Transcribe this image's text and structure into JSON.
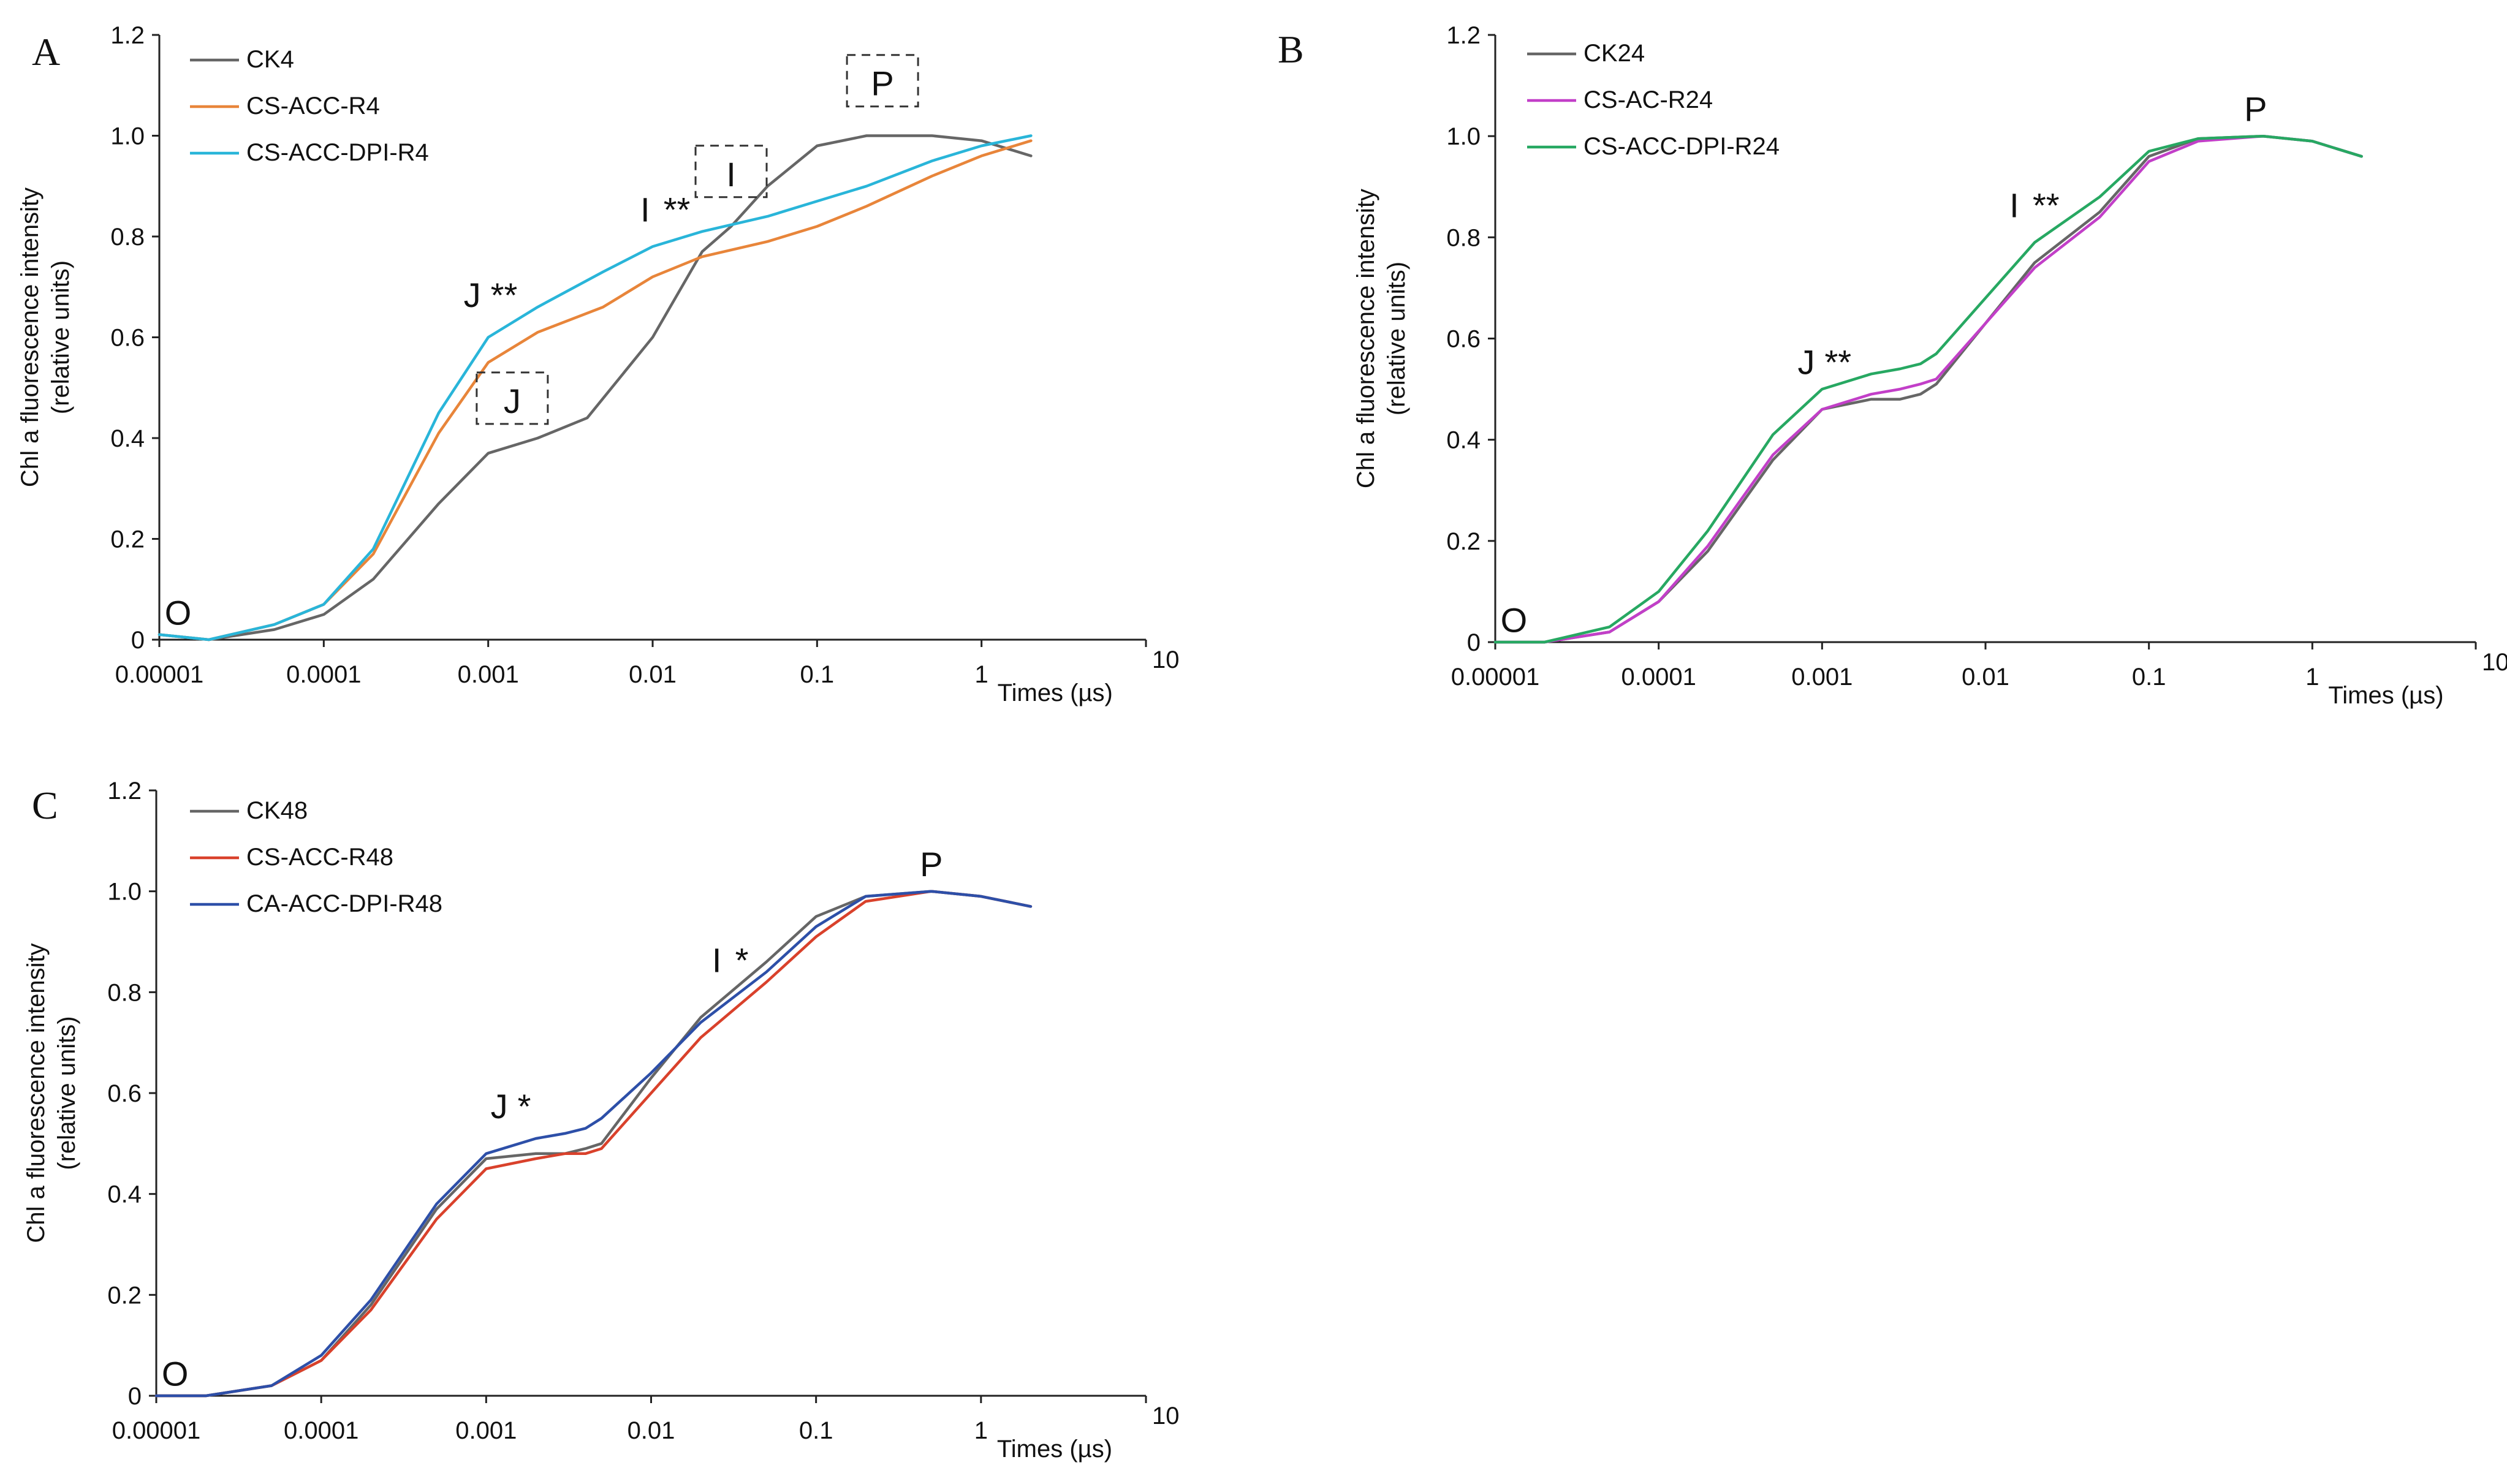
{
  "chart_data": [
    {
      "type": "line",
      "panel": "A",
      "xscale": "log",
      "xlabel": "Times (µs)",
      "ylabel": "Chl a fluorescence intensity",
      "ylabel2": "(relative units)",
      "xticks": [
        "0.00001",
        "0.0001",
        "0.001",
        "0.01",
        "0.1",
        "1",
        "10"
      ],
      "yticks": [
        "0",
        "0.2",
        "0.4",
        "0.6",
        "0.8",
        "1.0",
        "1.2"
      ],
      "xlim": [
        1e-05,
        10
      ],
      "ylim": [
        0,
        1.2
      ],
      "legend_position": "top-left",
      "series": [
        {
          "name": "CK4",
          "color": "#666666",
          "x": [
            1e-05,
            2e-05,
            5e-05,
            0.0001,
            0.0002,
            0.0005,
            0.001,
            0.002,
            0.004,
            0.01,
            0.02,
            0.03,
            0.05,
            0.1,
            0.2,
            0.5,
            1,
            2
          ],
          "y": [
            0.01,
            0.0,
            0.02,
            0.05,
            0.12,
            0.27,
            0.37,
            0.4,
            0.44,
            0.6,
            0.77,
            0.82,
            0.9,
            0.98,
            1.0,
            1.0,
            0.99,
            0.96
          ]
        },
        {
          "name": "CS-ACC-R4",
          "color": "#E8853A",
          "x": [
            1e-05,
            2e-05,
            5e-05,
            0.0001,
            0.0002,
            0.0005,
            0.001,
            0.002,
            0.005,
            0.01,
            0.02,
            0.05,
            0.1,
            0.2,
            0.5,
            1,
            2
          ],
          "y": [
            0.01,
            0.0,
            0.03,
            0.07,
            0.17,
            0.41,
            0.55,
            0.61,
            0.66,
            0.72,
            0.76,
            0.79,
            0.82,
            0.86,
            0.92,
            0.96,
            0.99
          ]
        },
        {
          "name": "CS-ACC-DPI-R4",
          "color": "#29B5D9",
          "x": [
            1e-05,
            2e-05,
            5e-05,
            0.0001,
            0.0002,
            0.0005,
            0.001,
            0.002,
            0.005,
            0.01,
            0.02,
            0.05,
            0.1,
            0.2,
            0.5,
            1,
            2
          ],
          "y": [
            0.01,
            0.0,
            0.03,
            0.07,
            0.18,
            0.45,
            0.6,
            0.66,
            0.73,
            0.78,
            0.81,
            0.84,
            0.87,
            0.9,
            0.95,
            0.98,
            1.0
          ]
        }
      ],
      "annotations": [
        {
          "text": "O",
          "x": 1.3e-05,
          "y": 0.03
        },
        {
          "text": "J",
          "x": 0.0008,
          "y": 0.66,
          "stars": "**"
        },
        {
          "text": "I",
          "x": 0.009,
          "y": 0.83,
          "stars": "**"
        },
        {
          "text": "J",
          "x": 0.0014,
          "y": 0.45,
          "boxed": true
        },
        {
          "text": "I",
          "x": 0.03,
          "y": 0.9,
          "boxed": true
        },
        {
          "text": "P",
          "x": 0.25,
          "y": 1.08,
          "boxed": true
        }
      ]
    },
    {
      "type": "line",
      "panel": "B",
      "xscale": "log",
      "xlabel": "Times (µs)",
      "ylabel": "Chl a fluorescence intensity",
      "ylabel2": "(relative units)",
      "xticks": [
        "0.00001",
        "0.0001",
        "0.001",
        "0.01",
        "0.1",
        "1",
        "10"
      ],
      "yticks": [
        "0",
        "0.2",
        "0.4",
        "0.6",
        "0.8",
        "1.0",
        "1.2"
      ],
      "xlim": [
        1e-05,
        10
      ],
      "ylim": [
        0,
        1.2
      ],
      "legend_position": "top-left",
      "series": [
        {
          "name": "CK24",
          "color": "#666666",
          "x": [
            1e-05,
            2e-05,
            5e-05,
            0.0001,
            0.0002,
            0.0005,
            0.001,
            0.002,
            0.003,
            0.004,
            0.005,
            0.01,
            0.02,
            0.05,
            0.1,
            0.2,
            0.5,
            1,
            2
          ],
          "y": [
            0.0,
            0.0,
            0.02,
            0.08,
            0.18,
            0.36,
            0.46,
            0.48,
            0.48,
            0.49,
            0.51,
            0.63,
            0.75,
            0.85,
            0.96,
            0.995,
            1.0,
            0.99,
            0.96
          ]
        },
        {
          "name": "CS-AC-R24",
          "color": "#C23FC8",
          "x": [
            1e-05,
            2e-05,
            5e-05,
            0.0001,
            0.0002,
            0.0005,
            0.001,
            0.002,
            0.003,
            0.004,
            0.005,
            0.01,
            0.02,
            0.05,
            0.1,
            0.2,
            0.5,
            1,
            2
          ],
          "y": [
            0.0,
            0.0,
            0.02,
            0.08,
            0.19,
            0.37,
            0.46,
            0.49,
            0.5,
            0.51,
            0.52,
            0.63,
            0.74,
            0.84,
            0.95,
            0.99,
            1.0,
            0.99,
            0.96
          ]
        },
        {
          "name": "CS-ACC-DPI-R24",
          "color": "#27A862",
          "x": [
            1e-05,
            2e-05,
            5e-05,
            0.0001,
            0.0002,
            0.0005,
            0.001,
            0.002,
            0.003,
            0.004,
            0.005,
            0.01,
            0.02,
            0.05,
            0.1,
            0.2,
            0.5,
            1,
            2
          ],
          "y": [
            0.0,
            0.0,
            0.03,
            0.1,
            0.22,
            0.41,
            0.5,
            0.53,
            0.54,
            0.55,
            0.57,
            0.68,
            0.79,
            0.88,
            0.97,
            0.995,
            1.0,
            0.99,
            0.96
          ]
        }
      ],
      "annotations": [
        {
          "text": "O",
          "x": 1.3e-05,
          "y": 0.02
        },
        {
          "text": "J",
          "x": 0.0008,
          "y": 0.53,
          "stars": "**"
        },
        {
          "text": "I",
          "x": 0.015,
          "y": 0.84,
          "stars": "**"
        },
        {
          "text": "P",
          "x": 0.45,
          "y": 1.03
        }
      ]
    },
    {
      "type": "line",
      "panel": "C",
      "xscale": "log",
      "xlabel": "Times (µs)",
      "ylabel": "Chl a fluorescence intensity",
      "ylabel2": "(relative units)",
      "xticks": [
        "0.00001",
        "0.0001",
        "0.001",
        "0.01",
        "0.1",
        "1",
        "10"
      ],
      "yticks": [
        "0",
        "0.2",
        "0.4",
        "0.6",
        "0.8",
        "1.0",
        "1.2"
      ],
      "xlim": [
        1e-05,
        10
      ],
      "ylim": [
        0,
        1.2
      ],
      "legend_position": "top-left",
      "series": [
        {
          "name": "CK48",
          "color": "#666666",
          "x": [
            1e-05,
            2e-05,
            5e-05,
            0.0001,
            0.0002,
            0.0005,
            0.001,
            0.002,
            0.003,
            0.004,
            0.005,
            0.01,
            0.02,
            0.05,
            0.1,
            0.2,
            0.5,
            1,
            2
          ],
          "y": [
            0.0,
            0.0,
            0.02,
            0.07,
            0.18,
            0.37,
            0.47,
            0.48,
            0.48,
            0.49,
            0.5,
            0.63,
            0.75,
            0.86,
            0.95,
            0.99,
            1.0,
            0.99,
            0.97
          ]
        },
        {
          "name": "CS-ACC-R48",
          "color": "#D9412B",
          "x": [
            1e-05,
            2e-05,
            5e-05,
            0.0001,
            0.0002,
            0.0005,
            0.001,
            0.002,
            0.003,
            0.004,
            0.005,
            0.01,
            0.02,
            0.05,
            0.1,
            0.2,
            0.5,
            1,
            2
          ],
          "y": [
            0.0,
            0.0,
            0.02,
            0.07,
            0.17,
            0.35,
            0.45,
            0.47,
            0.48,
            0.48,
            0.49,
            0.6,
            0.71,
            0.82,
            0.91,
            0.98,
            1.0,
            0.99,
            0.97
          ]
        },
        {
          "name": "CA-ACC-DPI-R48",
          "color": "#2D4FA8",
          "x": [
            1e-05,
            2e-05,
            5e-05,
            0.0001,
            0.0002,
            0.0005,
            0.001,
            0.002,
            0.003,
            0.004,
            0.005,
            0.01,
            0.02,
            0.05,
            0.1,
            0.2,
            0.5,
            1,
            2
          ],
          "y": [
            0.0,
            0.0,
            0.02,
            0.08,
            0.19,
            0.38,
            0.48,
            0.51,
            0.52,
            0.53,
            0.55,
            0.64,
            0.74,
            0.84,
            0.93,
            0.99,
            1.0,
            0.99,
            0.97
          ]
        }
      ],
      "annotations": [
        {
          "text": "O",
          "x": 1.3e-05,
          "y": 0.02
        },
        {
          "text": "J",
          "x": 0.0012,
          "y": 0.55,
          "stars": "*"
        },
        {
          "text": "I",
          "x": 0.025,
          "y": 0.84,
          "stars": "*"
        },
        {
          "text": "P",
          "x": 0.5,
          "y": 1.03
        }
      ]
    }
  ]
}
